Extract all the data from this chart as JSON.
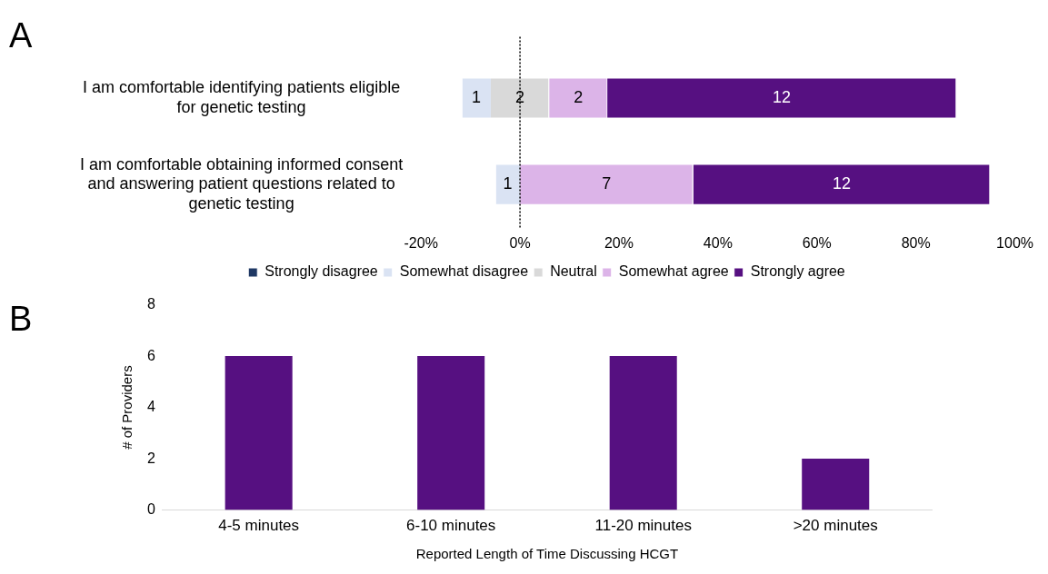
{
  "chart_data": [
    {
      "type": "bar",
      "title": "A",
      "orientation": "horizontal",
      "categories": [
        "I am comfortable identifying patients eligible for genetic testing",
        "I am comfortable obtaining informed consent and answering patient questions related to genetic testing"
      ],
      "series": [
        {
          "name": "Strongly disagree",
          "color": "#1f3864",
          "values": [
            null,
            null
          ],
          "base": [
            null,
            null
          ]
        },
        {
          "name": "Somewhat disagree",
          "color": "#dae3f3",
          "values": [
            5.9,
            5
          ],
          "base": [
            -11.8,
            -5
          ]
        },
        {
          "name": "Neutral",
          "color": "#d9d9d9",
          "values": [
            11.8,
            null
          ],
          "base": [
            -5.9,
            null
          ]
        },
        {
          "name": "Somewhat agree",
          "color": "#dcb4e8",
          "values": [
            11.8,
            35
          ],
          "base": [
            5.9,
            0
          ]
        },
        {
          "name": "Strongly agree",
          "color": "#561081",
          "values": [
            70.6,
            60
          ],
          "base": [
            17.6,
            35
          ]
        }
      ],
      "annotations": [
        "1",
        "1",
        "2",
        "2",
        "7",
        "12",
        "12"
      ],
      "xlim": [
        -20,
        100
      ],
      "xticks": [
        {
          "value": -20,
          "label": "-20%"
        },
        {
          "value": 0,
          "label": "0%"
        },
        {
          "value": 20,
          "label": "20%"
        },
        {
          "value": 40,
          "label": "40%"
        },
        {
          "value": 60,
          "label": "60%"
        },
        {
          "value": 80,
          "label": "80%"
        },
        {
          "value": 100,
          "label": "100%"
        }
      ],
      "ref_lines": [
        {
          "axis": "x",
          "value": 0,
          "color": "#000000",
          "line_style": "dotted"
        }
      ],
      "legend": "bottom",
      "grid": false
    },
    {
      "type": "bar",
      "title": "B",
      "categories": [
        "4-5 minutes",
        "6-10 minutes",
        "11-20 minutes",
        ">20 minutes"
      ],
      "values": [
        6,
        6,
        6,
        2
      ],
      "color": "#561081",
      "ylim": [
        0,
        8
      ],
      "yticks": [
        0,
        2,
        4,
        6,
        8
      ],
      "ylabel": "# of Providers",
      "xlabel": "Reported Length of Time Discussing HCGT",
      "grid": false,
      "legend": false
    }
  ]
}
